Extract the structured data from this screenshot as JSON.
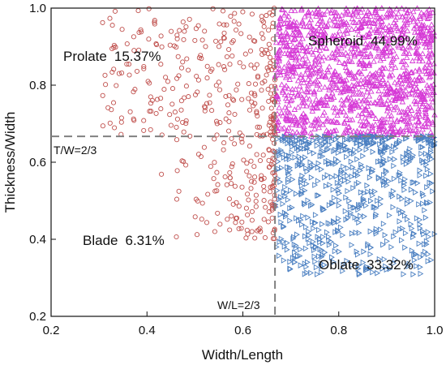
{
  "chart_data": {
    "type": "scatter",
    "xlabel": "Width/Length",
    "ylabel": "Thickness/Width",
    "xlim": [
      0.2,
      1.0
    ],
    "ylim": [
      0.2,
      1.0
    ],
    "xticks": [
      "0.2",
      "0.4",
      "0.6",
      "0.8",
      "1.0"
    ],
    "yticks": [
      "0.2",
      "0.4",
      "0.6",
      "0.8",
      "1.0"
    ],
    "grid": false,
    "thresholds": {
      "x": {
        "value": 0.667,
        "label": "W/L=2/3"
      },
      "y": {
        "value": 0.667,
        "label": "T/W=2/3"
      }
    },
    "regions": [
      {
        "name": "Prolate",
        "percent": "15.37%",
        "color": "#c0504d",
        "marker": "circle",
        "x_range": [
          0.3,
          0.667
        ],
        "y_range": [
          0.4,
          1.0
        ]
      },
      {
        "name": "Spheroid",
        "percent": "44.99%",
        "color": "#d63ad6",
        "marker": "triangle-up",
        "x_range": [
          0.667,
          1.0
        ],
        "y_range": [
          0.667,
          1.0
        ]
      },
      {
        "name": "Oblate",
        "percent": "33.32%",
        "color": "#4a7fc1",
        "marker": "triangle-right",
        "x_range": [
          0.667,
          1.0
        ],
        "y_range": [
          0.25,
          0.667
        ]
      },
      {
        "name": "Blade",
        "percent": "6.31%",
        "color": "#888888",
        "marker": "none",
        "x_range": [
          0.2,
          0.667
        ],
        "y_range": [
          0.2,
          0.667
        ]
      }
    ],
    "colors": {
      "prolate": "#c0504d",
      "spheroid": "#d63ad6",
      "oblate": "#4a7fc1",
      "threshold_line": "#808080"
    }
  }
}
